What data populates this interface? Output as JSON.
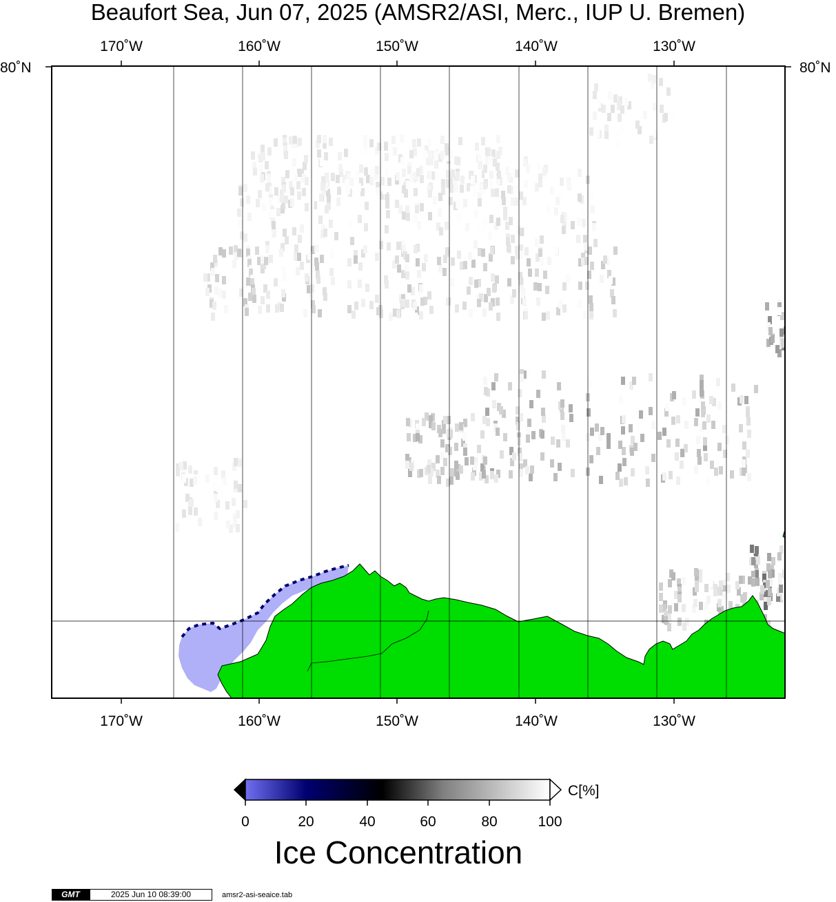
{
  "title": "Beaufort Sea, Jun 07, 2025 (AMSR2/ASI, Merc., IUP U. Bremen)",
  "map": {
    "projection": "Mercator",
    "lon_range": [
      -175,
      -122
    ],
    "lat_max": 80,
    "top_lon_labels": [
      "170˚W",
      "160˚W",
      "150˚W",
      "140˚W",
      "130˚W"
    ],
    "bottom_lon_labels": [
      "170˚W",
      "160˚W",
      "150˚W",
      "140˚W",
      "130˚W"
    ],
    "lat_label_left": "80˚N",
    "lat_label_right": "80˚N",
    "colors": {
      "land": "#00dd00",
      "ocean": "#ffffff",
      "low_concentration": "#b0b0f8",
      "grid": "#000000"
    }
  },
  "colorbar": {
    "unit": "C[%]",
    "ticks": [
      "0",
      "20",
      "40",
      "60",
      "80",
      "100"
    ],
    "title": "Ice Concentration",
    "color_stops": [
      "#7070f0",
      "#000070",
      "#000000",
      "#808080",
      "#ffffff"
    ]
  },
  "footer": {
    "logo": "GMT",
    "timestamp": "2025 Jun 10 08:39:00",
    "filename": "amsr2-asi-seaice.tab"
  }
}
